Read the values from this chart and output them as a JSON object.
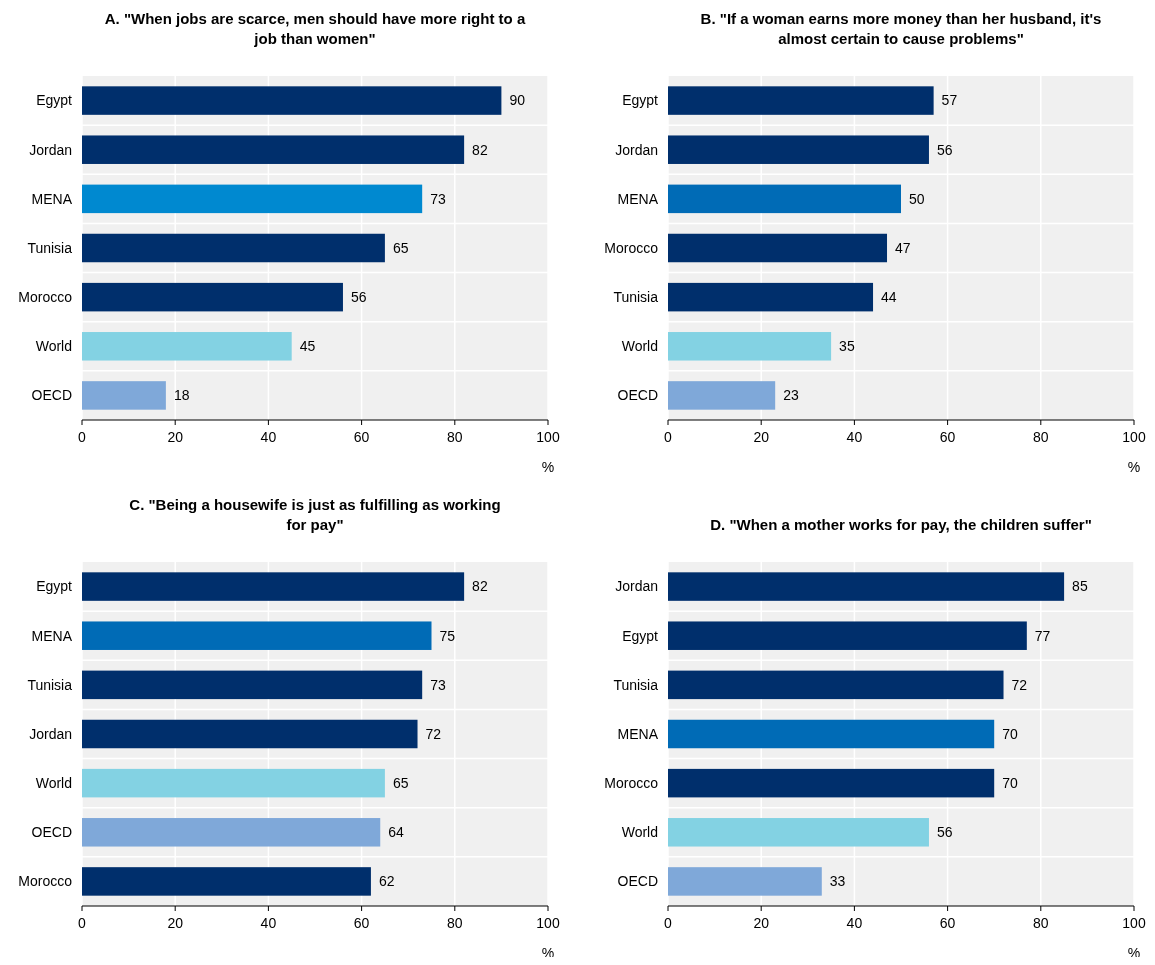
{
  "chart_data": [
    {
      "type": "bar",
      "orientation": "horizontal",
      "title": "A. \"When jobs are scarce, men should have more right to a job than women\"",
      "categories": [
        "Egypt",
        "Jordan",
        "MENA",
        "Tunisia",
        "Morocco",
        "World",
        "OECD"
      ],
      "values": [
        90,
        82,
        73,
        65,
        56,
        45,
        18
      ],
      "colors": [
        "#002f6c",
        "#002f6c",
        "#0089d0",
        "#002f6c",
        "#002f6c",
        "#83d2e3",
        "#7fa8d9"
      ],
      "xlim": [
        0,
        100
      ],
      "xticks": [
        0,
        20,
        40,
        60,
        80,
        100
      ],
      "xlabel": "%",
      "grid": "x",
      "data_labels": true
    },
    {
      "type": "bar",
      "orientation": "horizontal",
      "title": "B. \"If a woman earns more money than her husband, it's almost certain to cause problems\"",
      "categories": [
        "Egypt",
        "Jordan",
        "MENA",
        "Morocco",
        "Tunisia",
        "World",
        "OECD"
      ],
      "values": [
        57,
        56,
        50,
        47,
        44,
        35,
        23
      ],
      "colors": [
        "#002f6c",
        "#002f6c",
        "#006bb6",
        "#002f6c",
        "#002f6c",
        "#83d2e3",
        "#7fa8d9"
      ],
      "xlim": [
        0,
        100
      ],
      "xticks": [
        0,
        20,
        40,
        60,
        80,
        100
      ],
      "xlabel": "%",
      "grid": "x",
      "data_labels": true
    },
    {
      "type": "bar",
      "orientation": "horizontal",
      "title": "C. \"Being a housewife is just as fulfilling as working for pay\"",
      "categories": [
        "Egypt",
        "MENA",
        "Tunisia",
        "Jordan",
        "World",
        "OECD",
        "Morocco"
      ],
      "values": [
        82,
        75,
        73,
        72,
        65,
        64,
        62
      ],
      "colors": [
        "#002f6c",
        "#006bb6",
        "#002f6c",
        "#002f6c",
        "#83d2e3",
        "#7fa8d9",
        "#002f6c"
      ],
      "xlim": [
        0,
        100
      ],
      "xticks": [
        0,
        20,
        40,
        60,
        80,
        100
      ],
      "xlabel": "%",
      "grid": "x",
      "data_labels": true
    },
    {
      "type": "bar",
      "orientation": "horizontal",
      "title": "D. \"When a mother works for pay, the children suffer\"",
      "categories": [
        "Jordan",
        "Egypt",
        "Tunisia",
        "MENA",
        "Morocco",
        "World",
        "OECD"
      ],
      "values": [
        85,
        77,
        72,
        70,
        70,
        56,
        33
      ],
      "colors": [
        "#002f6c",
        "#002f6c",
        "#002f6c",
        "#006bb6",
        "#002f6c",
        "#83d2e3",
        "#7fa8d9"
      ],
      "xlim": [
        0,
        100
      ],
      "xticks": [
        0,
        20,
        40,
        60,
        80,
        100
      ],
      "xlabel": "%",
      "grid": "x",
      "data_labels": true
    }
  ]
}
